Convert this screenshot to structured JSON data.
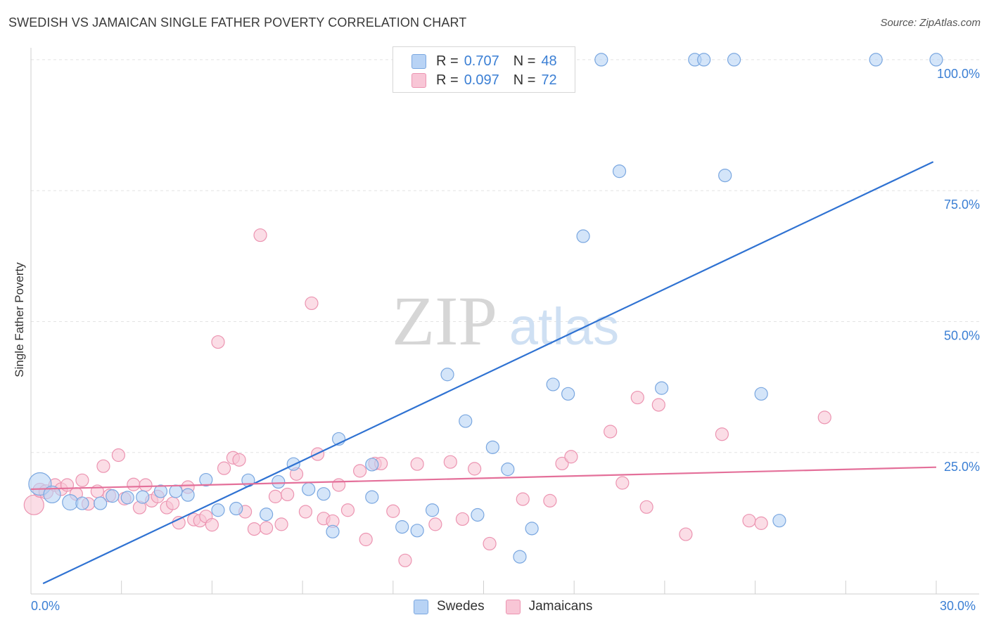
{
  "title": "SWEDISH VS JAMAICAN SINGLE FATHER POVERTY CORRELATION CHART",
  "source": "Source: ZipAtlas.com",
  "watermark": {
    "zip": "ZIP",
    "atlas": "atlas"
  },
  "legend": {
    "row1": {
      "r_key": "R =",
      "r_val": "0.707",
      "n_key": "N =",
      "n_val": "48"
    },
    "row2": {
      "r_key": "R =",
      "r_val": "0.097",
      "n_key": "N =",
      "n_val": "72"
    }
  },
  "colors": {
    "blue_fill": "#b8d3f5",
    "blue_stroke": "#7aa7e0",
    "blue_line": "#2f72d2",
    "pink_fill": "#f8c6d6",
    "pink_stroke": "#ec94b1",
    "pink_line": "#e4709a",
    "grid": "#e3e3e3",
    "tick_label": "#3b7fd4"
  },
  "chart_data": {
    "type": "scatter",
    "title": "SWEDISH VS JAMAICAN SINGLE FATHER POVERTY CORRELATION CHART",
    "xlabel": "",
    "ylabel": "Single Father Poverty",
    "xlim": [
      0,
      30
    ],
    "ylim": [
      -2,
      102
    ],
    "x_tick_labels": [
      "0.0%",
      "30.0%"
    ],
    "y_ticks": [
      {
        "value": 25,
        "label": "25.0%"
      },
      {
        "value": 50,
        "label": "50.0%"
      },
      {
        "value": 75,
        "label": "75.0%"
      },
      {
        "value": 100,
        "label": "100.0%"
      }
    ],
    "grid": true,
    "legend_position": "bottom",
    "series": [
      {
        "name": "Swedes",
        "color": "#b8d3f5",
        "r": 0.707,
        "n": 48,
        "trend": [
          [
            0.4,
            0
          ],
          [
            29.9,
            80.5
          ]
        ],
        "points": [
          [
            0.3,
            19.0,
            16
          ],
          [
            0.7,
            17.0,
            12
          ],
          [
            1.3,
            15.5,
            11
          ],
          [
            1.7,
            15.3,
            9
          ],
          [
            2.3,
            15.3,
            9
          ],
          [
            2.7,
            16.7,
            9
          ],
          [
            3.2,
            16.4,
            9
          ],
          [
            3.7,
            16.5,
            9
          ],
          [
            4.3,
            17.6,
            9
          ],
          [
            4.8,
            17.6,
            9
          ],
          [
            5.2,
            16.9,
            9
          ],
          [
            5.8,
            19.8,
            9
          ],
          [
            6.2,
            14.0,
            9
          ],
          [
            6.8,
            14.3,
            9
          ],
          [
            7.2,
            19.7,
            9
          ],
          [
            7.8,
            13.2,
            9
          ],
          [
            8.2,
            19.4,
            9
          ],
          [
            8.7,
            22.8,
            9
          ],
          [
            9.2,
            18.0,
            9
          ],
          [
            9.7,
            17.1,
            9
          ],
          [
            10.2,
            27.6,
            9
          ],
          [
            10.0,
            9.9,
            9
          ],
          [
            11.3,
            16.5,
            9
          ],
          [
            11.3,
            22.7,
            9
          ],
          [
            12.3,
            10.8,
            9
          ],
          [
            12.8,
            10.1,
            9
          ],
          [
            13.3,
            14.0,
            9
          ],
          [
            13.8,
            39.9,
            9
          ],
          [
            14.4,
            31.0,
            9
          ],
          [
            14.8,
            13.1,
            9
          ],
          [
            15.3,
            26.0,
            9
          ],
          [
            15.8,
            21.8,
            9
          ],
          [
            16.2,
            5.1,
            9
          ],
          [
            16.6,
            10.5,
            9
          ],
          [
            17.3,
            38.0,
            9
          ],
          [
            17.8,
            36.2,
            9
          ],
          [
            18.3,
            66.3,
            9
          ],
          [
            18.9,
            100.0,
            9
          ],
          [
            19.5,
            78.7,
            9
          ],
          [
            20.9,
            37.3,
            9
          ],
          [
            22.0,
            100.0,
            9
          ],
          [
            22.3,
            100.0,
            9
          ],
          [
            23.0,
            77.9,
            9
          ],
          [
            23.3,
            100.0,
            9
          ],
          [
            24.2,
            36.2,
            9
          ],
          [
            24.8,
            12.0,
            9
          ],
          [
            28.0,
            100.0,
            9
          ],
          [
            30.0,
            100.0,
            9
          ]
        ]
      },
      {
        "name": "Jamaicans",
        "color": "#f8c6d6",
        "r": 0.097,
        "n": 72,
        "trend": [
          [
            0,
            18.0
          ],
          [
            30.0,
            22.2
          ]
        ],
        "points": [
          [
            0.1,
            15.0,
            14
          ],
          [
            0.3,
            17.8,
            10
          ],
          [
            0.5,
            17.5,
            10
          ],
          [
            0.8,
            18.8,
            9
          ],
          [
            1.0,
            18.0,
            9
          ],
          [
            1.2,
            18.8,
            9
          ],
          [
            1.5,
            17.1,
            9
          ],
          [
            1.7,
            19.7,
            9
          ],
          [
            1.9,
            15.2,
            9
          ],
          [
            2.2,
            17.6,
            9
          ],
          [
            2.4,
            22.4,
            9
          ],
          [
            2.6,
            16.8,
            9
          ],
          [
            2.9,
            24.5,
            9
          ],
          [
            3.1,
            16.2,
            9
          ],
          [
            3.4,
            18.9,
            9
          ],
          [
            3.6,
            14.5,
            9
          ],
          [
            3.8,
            18.8,
            9
          ],
          [
            4.0,
            15.8,
            9
          ],
          [
            4.2,
            16.6,
            9
          ],
          [
            4.5,
            14.5,
            9
          ],
          [
            4.7,
            15.3,
            9
          ],
          [
            4.9,
            11.6,
            9
          ],
          [
            5.2,
            18.4,
            9
          ],
          [
            5.4,
            12.2,
            9
          ],
          [
            5.6,
            12.0,
            9
          ],
          [
            5.8,
            12.8,
            9
          ],
          [
            6.0,
            11.2,
            9
          ],
          [
            6.2,
            46.1,
            9
          ],
          [
            6.4,
            22.0,
            9
          ],
          [
            6.7,
            24.0,
            9
          ],
          [
            6.9,
            23.6,
            9
          ],
          [
            7.1,
            13.7,
            9
          ],
          [
            7.4,
            10.4,
            9
          ],
          [
            7.6,
            66.5,
            9
          ],
          [
            7.8,
            10.6,
            9
          ],
          [
            8.1,
            16.6,
            9
          ],
          [
            8.3,
            11.3,
            9
          ],
          [
            8.5,
            17.0,
            9
          ],
          [
            8.8,
            20.9,
            9
          ],
          [
            9.1,
            13.7,
            9
          ],
          [
            9.3,
            53.5,
            9
          ],
          [
            9.5,
            24.7,
            9
          ],
          [
            9.7,
            12.4,
            9
          ],
          [
            10.0,
            11.9,
            9
          ],
          [
            10.2,
            18.8,
            9
          ],
          [
            10.5,
            14.0,
            9
          ],
          [
            10.9,
            21.5,
            9
          ],
          [
            11.1,
            8.4,
            9
          ],
          [
            11.4,
            22.9,
            9
          ],
          [
            11.6,
            22.9,
            9
          ],
          [
            12.0,
            13.8,
            9
          ],
          [
            12.4,
            4.4,
            9
          ],
          [
            12.8,
            22.8,
            9
          ],
          [
            13.4,
            11.3,
            9
          ],
          [
            13.9,
            23.2,
            9
          ],
          [
            14.3,
            12.3,
            9
          ],
          [
            14.7,
            21.9,
            9
          ],
          [
            15.2,
            7.6,
            9
          ],
          [
            16.3,
            16.1,
            9
          ],
          [
            17.2,
            15.8,
            9
          ],
          [
            17.6,
            22.9,
            9
          ],
          [
            17.9,
            24.2,
            9
          ],
          [
            19.2,
            29.0,
            9
          ],
          [
            19.6,
            19.2,
            9
          ],
          [
            20.1,
            35.5,
            9
          ],
          [
            20.4,
            14.6,
            9
          ],
          [
            20.8,
            34.1,
            9
          ],
          [
            21.7,
            9.4,
            9
          ],
          [
            22.9,
            28.5,
            9
          ],
          [
            23.8,
            12.0,
            9
          ],
          [
            24.2,
            11.5,
            9
          ],
          [
            26.3,
            31.7,
            9
          ]
        ]
      }
    ]
  },
  "bottom_legend": {
    "swedes": "Swedes",
    "jamaicans": "Jamaicans"
  }
}
